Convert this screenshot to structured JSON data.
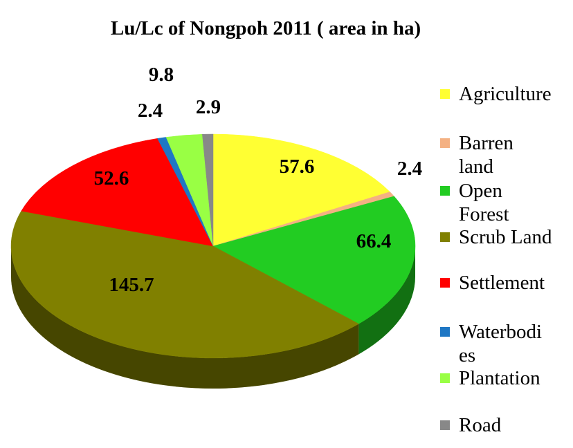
{
  "chart_data": {
    "type": "pie",
    "title": "Lu/Lc of Nongpoh 2011 ( area in ha)",
    "legend_position": "right",
    "categories": [
      "Agriculture",
      "Barren land",
      "Open Forest",
      "Scrub Land",
      "Settlement",
      "Waterbodies",
      "Plantation",
      "Road"
    ],
    "legend_labels": [
      [
        "Agriculture"
      ],
      [
        "Barren",
        "land"
      ],
      [
        "Open",
        "Forest"
      ],
      [
        "Scrub Land"
      ],
      [
        "Settlement"
      ],
      [
        "Waterbodi",
        "es"
      ],
      [
        "Plantation"
      ],
      [
        "Road"
      ]
    ],
    "values": [
      57.6,
      2.4,
      66.4,
      145.7,
      52.6,
      2.4,
      9.8,
      2.9
    ],
    "value_labels": [
      "57.6",
      "2.4",
      "66.4",
      "145.7",
      "52.6",
      "2.4",
      "9.8",
      "2.9"
    ],
    "colors": [
      "#FFFF33",
      "#F4B183",
      "#22CC22",
      "#808000",
      "#FF0000",
      "#1F77C4",
      "#99FF44",
      "#888888"
    ],
    "style": "3d"
  }
}
